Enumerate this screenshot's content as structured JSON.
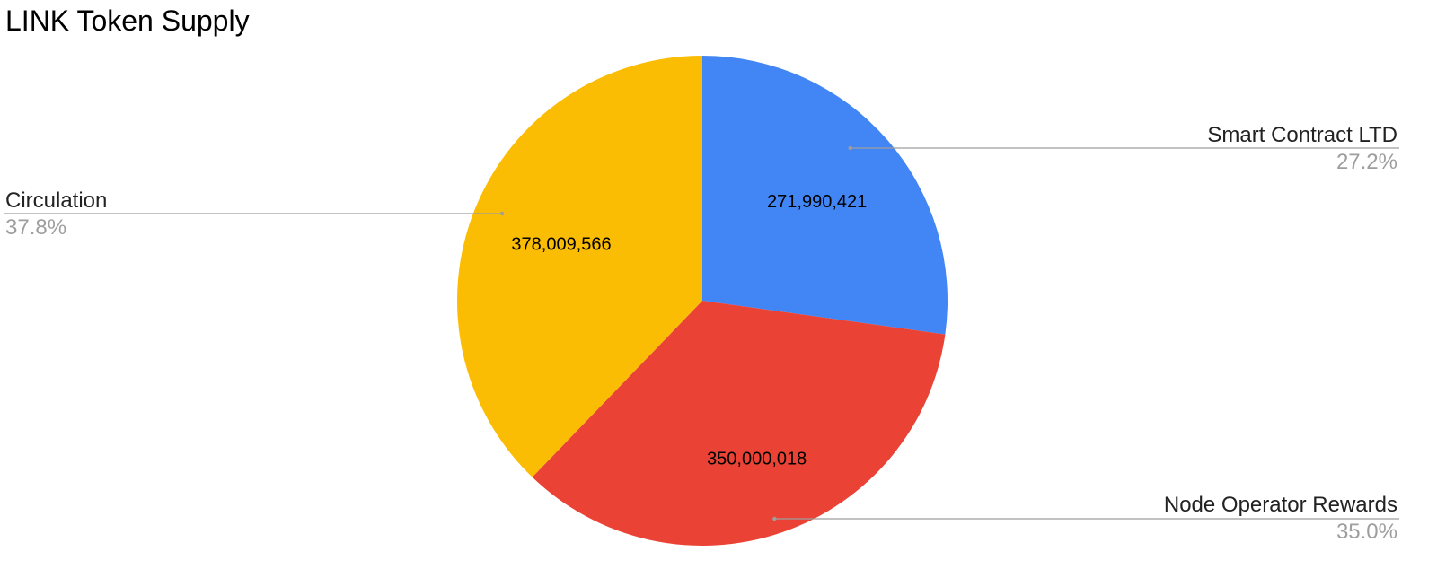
{
  "chart_data": {
    "type": "pie",
    "title": "LINK Token Supply",
    "slices": [
      {
        "label": "Smart Contract LTD",
        "value": 271990421,
        "value_label": "271,990,421",
        "percent_label": "27.2%",
        "color": "#4285f4"
      },
      {
        "label": "Node Operator Rewards",
        "value": 350000018,
        "value_label": "350,000,018",
        "percent_label": "35.0%",
        "color": "#ea4335"
      },
      {
        "label": "Circulation",
        "value": 378009566,
        "value_label": "378,009,566",
        "percent_label": "37.8%",
        "color": "#fbbc04"
      }
    ],
    "start_angle": "12 o'clock",
    "direction": "clockwise",
    "legend": "none"
  }
}
